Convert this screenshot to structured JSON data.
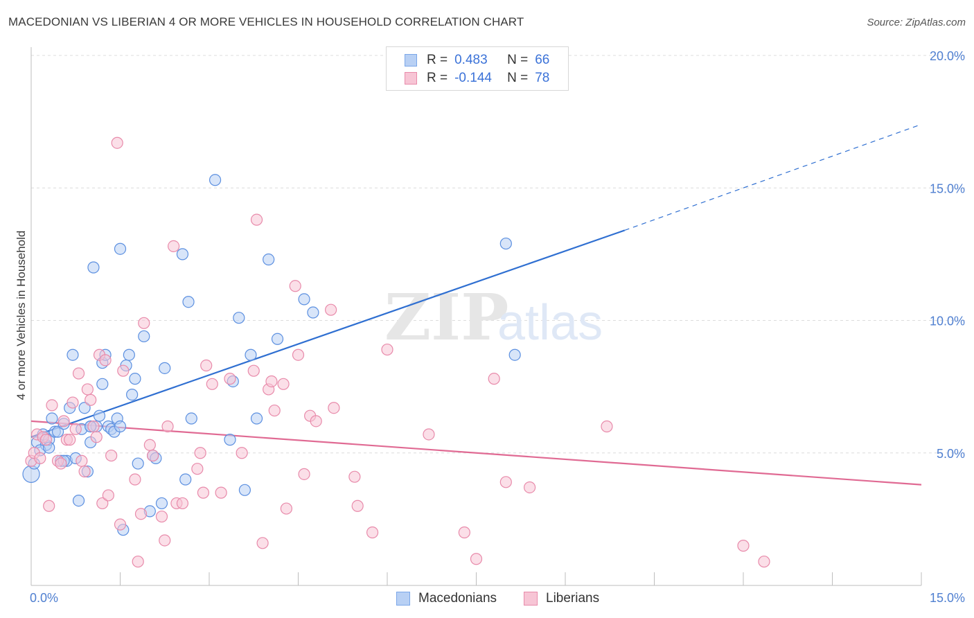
{
  "title": "MACEDONIAN VS LIBERIAN 4 OR MORE VEHICLES IN HOUSEHOLD CORRELATION CHART",
  "source": "Source: ZipAtlas.com",
  "watermark": {
    "zip": "ZIP",
    "atlas": "atlas"
  },
  "legend": {
    "rows": [
      {
        "r_label": "R =",
        "r_value": "0.483",
        "n_label": "N =",
        "n_value": "66",
        "color": "#7aa6e8",
        "fill": "#b8d0f4"
      },
      {
        "r_label": "R =",
        "r_value": "-0.144",
        "n_label": "N =",
        "n_value": "78",
        "color": "#e88aaa",
        "fill": "#f7c5d5"
      }
    ]
  },
  "bottom_legend": [
    {
      "label": "Macedonians",
      "color": "#7aa6e8",
      "fill": "#b8d0f4"
    },
    {
      "label": "Liberians",
      "color": "#e88aaa",
      "fill": "#f7c5d5"
    }
  ],
  "chart_data": {
    "type": "scatter",
    "title": "MACEDONIAN VS LIBERIAN 4 OR MORE VEHICLES IN HOUSEHOLD CORRELATION CHART",
    "xlabel": "",
    "ylabel": "4 or more Vehicles in Household",
    "xlim": [
      0,
      15
    ],
    "ylim": [
      0,
      20
    ],
    "x_tick_labels": [
      "0.0%",
      "15.0%"
    ],
    "y_tick_labels": [
      "5.0%",
      "10.0%",
      "15.0%",
      "20.0%"
    ],
    "y_ticks": [
      5,
      10,
      15,
      20
    ],
    "grid": true,
    "legend_position": "top-center",
    "series": [
      {
        "name": "Macedonians",
        "color": "#5b8fe0",
        "fill": "#b8d0f4",
        "trend": {
          "x0": 0.0,
          "y0": 5.6,
          "x1": 10.0,
          "y1": 13.4,
          "dash_to_x": 15.0,
          "dash_to_y": 17.4,
          "color": "#2f6fd1"
        },
        "points": [
          [
            0.0,
            4.2
          ],
          [
            0.05,
            4.6
          ],
          [
            0.1,
            5.4
          ],
          [
            0.2,
            5.7
          ],
          [
            0.25,
            5.3
          ],
          [
            0.3,
            5.5
          ],
          [
            0.35,
            6.3
          ],
          [
            0.4,
            5.8
          ],
          [
            0.45,
            5.8
          ],
          [
            0.5,
            4.7
          ],
          [
            0.55,
            6.1
          ],
          [
            0.6,
            4.7
          ],
          [
            0.65,
            6.7
          ],
          [
            0.7,
            8.7
          ],
          [
            0.75,
            4.8
          ],
          [
            0.8,
            3.2
          ],
          [
            0.85,
            5.9
          ],
          [
            0.9,
            6.7
          ],
          [
            0.95,
            4.3
          ],
          [
            1.0,
            6.0
          ],
          [
            1.0,
            5.4
          ],
          [
            1.05,
            12.0
          ],
          [
            1.1,
            6.0
          ],
          [
            1.15,
            6.4
          ],
          [
            1.2,
            8.4
          ],
          [
            1.2,
            7.6
          ],
          [
            1.25,
            8.7
          ],
          [
            1.3,
            6.0
          ],
          [
            1.35,
            5.9
          ],
          [
            1.4,
            5.8
          ],
          [
            1.45,
            6.3
          ],
          [
            1.5,
            6.0
          ],
          [
            1.5,
            12.7
          ],
          [
            1.55,
            2.1
          ],
          [
            1.6,
            8.3
          ],
          [
            1.65,
            8.7
          ],
          [
            1.7,
            7.2
          ],
          [
            1.75,
            7.8
          ],
          [
            1.8,
            4.6
          ],
          [
            1.9,
            9.4
          ],
          [
            2.0,
            2.8
          ],
          [
            2.05,
            4.9
          ],
          [
            2.1,
            4.8
          ],
          [
            2.2,
            3.1
          ],
          [
            2.25,
            8.2
          ],
          [
            2.55,
            12.5
          ],
          [
            2.6,
            4.0
          ],
          [
            2.65,
            10.7
          ],
          [
            2.7,
            6.3
          ],
          [
            3.1,
            15.3
          ],
          [
            3.35,
            5.5
          ],
          [
            3.4,
            7.7
          ],
          [
            3.5,
            10.1
          ],
          [
            3.6,
            3.6
          ],
          [
            3.7,
            8.7
          ],
          [
            3.8,
            6.3
          ],
          [
            4.0,
            12.3
          ],
          [
            4.15,
            9.3
          ],
          [
            4.6,
            10.8
          ],
          [
            4.75,
            10.3
          ],
          [
            8.0,
            12.9
          ],
          [
            8.15,
            8.7
          ],
          [
            0.15,
            5.1
          ],
          [
            0.3,
            5.2
          ],
          [
            0.55,
            4.7
          ],
          [
            1.0,
            6.0
          ]
        ]
      },
      {
        "name": "Liberians",
        "color": "#e88aaa",
        "fill": "#f7c5d5",
        "trend": {
          "x0": 0.0,
          "y0": 6.2,
          "x1": 15.0,
          "y1": 3.8,
          "color": "#e06a93"
        },
        "points": [
          [
            0.0,
            4.7
          ],
          [
            0.05,
            5.0
          ],
          [
            0.1,
            5.7
          ],
          [
            0.15,
            4.8
          ],
          [
            0.2,
            5.6
          ],
          [
            0.25,
            5.5
          ],
          [
            0.3,
            3.0
          ],
          [
            0.35,
            6.8
          ],
          [
            0.45,
            4.7
          ],
          [
            0.5,
            4.6
          ],
          [
            0.55,
            6.2
          ],
          [
            0.6,
            5.5
          ],
          [
            0.65,
            5.5
          ],
          [
            0.7,
            6.9
          ],
          [
            0.75,
            5.9
          ],
          [
            0.8,
            8.0
          ],
          [
            0.85,
            4.7
          ],
          [
            0.9,
            4.3
          ],
          [
            0.95,
            7.4
          ],
          [
            1.0,
            7.0
          ],
          [
            1.05,
            6.0
          ],
          [
            1.1,
            5.6
          ],
          [
            1.15,
            8.7
          ],
          [
            1.2,
            3.1
          ],
          [
            1.25,
            8.5
          ],
          [
            1.3,
            3.4
          ],
          [
            1.35,
            4.9
          ],
          [
            1.45,
            16.7
          ],
          [
            1.5,
            2.3
          ],
          [
            1.55,
            8.1
          ],
          [
            1.75,
            4.0
          ],
          [
            1.8,
            0.9
          ],
          [
            1.85,
            2.7
          ],
          [
            1.9,
            9.9
          ],
          [
            2.0,
            5.3
          ],
          [
            2.05,
            4.9
          ],
          [
            2.2,
            2.6
          ],
          [
            2.25,
            1.7
          ],
          [
            2.3,
            6.0
          ],
          [
            2.4,
            12.8
          ],
          [
            2.45,
            3.1
          ],
          [
            2.55,
            3.1
          ],
          [
            2.8,
            4.4
          ],
          [
            2.85,
            5.0
          ],
          [
            2.9,
            3.5
          ],
          [
            2.95,
            8.3
          ],
          [
            3.05,
            7.6
          ],
          [
            3.2,
            3.5
          ],
          [
            3.35,
            7.8
          ],
          [
            3.55,
            5.0
          ],
          [
            3.75,
            8.1
          ],
          [
            3.8,
            13.8
          ],
          [
            3.9,
            1.6
          ],
          [
            4.0,
            7.4
          ],
          [
            4.05,
            7.7
          ],
          [
            4.1,
            6.6
          ],
          [
            4.25,
            7.6
          ],
          [
            4.3,
            2.9
          ],
          [
            4.45,
            11.3
          ],
          [
            4.5,
            8.7
          ],
          [
            4.6,
            4.2
          ],
          [
            4.7,
            6.4
          ],
          [
            4.8,
            6.2
          ],
          [
            5.05,
            10.4
          ],
          [
            5.1,
            6.7
          ],
          [
            5.45,
            4.1
          ],
          [
            5.5,
            3.0
          ],
          [
            5.75,
            2.0
          ],
          [
            6.0,
            8.9
          ],
          [
            6.7,
            5.7
          ],
          [
            7.3,
            2.0
          ],
          [
            7.5,
            1.0
          ],
          [
            7.8,
            7.8
          ],
          [
            8.0,
            3.9
          ],
          [
            8.4,
            3.7
          ],
          [
            9.7,
            6.0
          ],
          [
            12.0,
            1.5
          ],
          [
            12.35,
            0.9
          ]
        ]
      }
    ]
  }
}
